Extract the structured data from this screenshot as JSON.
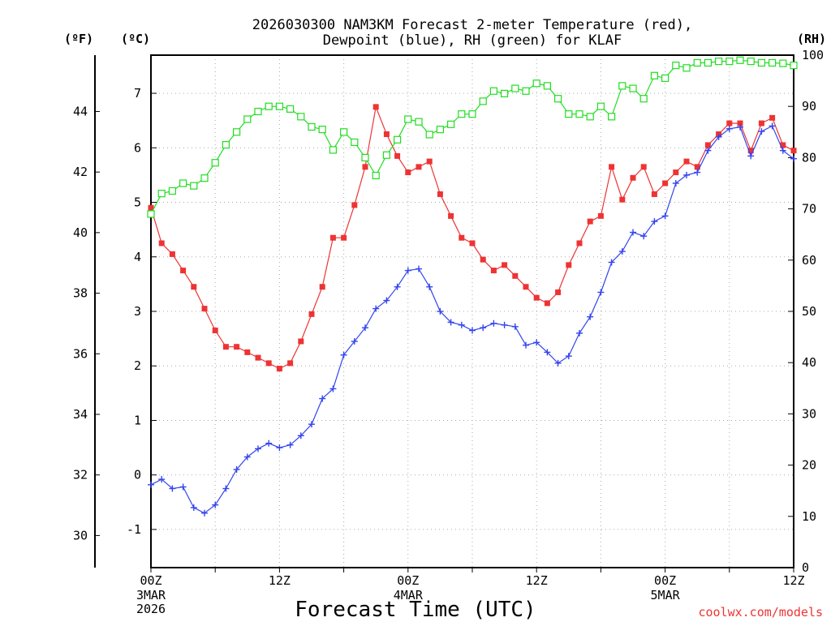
{
  "chart_data": {
    "type": "line",
    "title": "2026030300 NAM3KM Forecast 2-meter Temperature (red),",
    "subtitle": "Dewpoint (blue), RH (green) for KLAF",
    "xlabel": "Forecast Time (UTC)",
    "credit": "coolwx.com/models",
    "units": {
      "fahrenheit": "(ºF)",
      "celsius": "(ºC)",
      "rh": "(RH)"
    },
    "x_range_hours": [
      0,
      60
    ],
    "ylim_celsius": [
      -1.7,
      7.7
    ],
    "ylim_rh": [
      0,
      100
    ],
    "x_ticks": [
      {
        "hour": 0,
        "label": "00Z",
        "date": "3MAR",
        "year": "2026"
      },
      {
        "hour": 12,
        "label": "12Z",
        "date": "",
        "year": ""
      },
      {
        "hour": 24,
        "label": "00Z",
        "date": "4MAR",
        "year": ""
      },
      {
        "hour": 36,
        "label": "12Z",
        "date": "",
        "year": ""
      },
      {
        "hour": 48,
        "label": "00Z",
        "date": "5MAR",
        "year": ""
      },
      {
        "hour": 60,
        "label": "12Z",
        "date": "",
        "year": ""
      }
    ],
    "celsius_ticks": [
      "-1",
      "0",
      "1",
      "2",
      "3",
      "4",
      "5",
      "6",
      "7"
    ],
    "fahrenheit_ticks": [
      "30",
      "32",
      "34",
      "36",
      "38",
      "40",
      "42",
      "44"
    ],
    "rh_ticks": [
      "0",
      "10",
      "20",
      "30",
      "40",
      "50",
      "60",
      "70",
      "80",
      "90",
      "100"
    ],
    "series": [
      {
        "name": "2-meter Temperature",
        "color": "#ee3333",
        "marker": "filled-square",
        "axis": "celsius",
        "values": [
          4.9,
          4.25,
          4.05,
          3.75,
          3.45,
          3.05,
          2.65,
          2.35,
          2.35,
          2.25,
          2.15,
          2.05,
          1.95,
          2.05,
          2.45,
          2.95,
          3.45,
          4.35,
          4.35,
          4.95,
          5.65,
          6.75,
          6.25,
          5.85,
          5.55,
          5.65,
          5.75,
          5.15,
          4.75,
          4.35,
          4.25,
          3.95,
          3.75,
          3.85,
          3.65,
          3.45,
          3.25,
          3.15,
          3.35,
          3.85,
          4.25,
          4.65,
          4.75,
          5.65,
          5.05,
          5.45,
          5.65,
          5.15,
          5.35,
          5.55,
          5.75,
          5.65,
          6.05,
          6.25,
          6.45,
          6.45,
          5.95,
          6.45,
          6.55,
          6.05,
          5.95
        ]
      },
      {
        "name": "Dewpoint",
        "color": "#3344ee",
        "marker": "plus",
        "axis": "celsius",
        "values": [
          -0.18,
          -0.08,
          -0.25,
          -0.22,
          -0.6,
          -0.7,
          -0.55,
          -0.25,
          0.1,
          0.33,
          0.48,
          0.58,
          0.5,
          0.55,
          0.72,
          0.93,
          1.4,
          1.58,
          2.2,
          2.45,
          2.7,
          3.05,
          3.2,
          3.45,
          3.75,
          3.78,
          3.45,
          3.0,
          2.8,
          2.75,
          2.65,
          2.7,
          2.78,
          2.75,
          2.72,
          2.38,
          2.43,
          2.25,
          2.05,
          2.18,
          2.6,
          2.9,
          3.35,
          3.9,
          4.1,
          4.45,
          4.38,
          4.65,
          4.75,
          5.35,
          5.5,
          5.55,
          5.95,
          6.2,
          6.35,
          6.38,
          5.85,
          6.3,
          6.4,
          5.95,
          5.8
        ]
      },
      {
        "name": "RH",
        "color": "#22dd22",
        "marker": "open-square",
        "axis": "rh",
        "values": [
          69,
          73,
          73.5,
          75,
          74.5,
          76,
          79,
          82.5,
          85,
          87.5,
          89,
          90,
          90,
          89.5,
          88,
          86,
          85.5,
          81.5,
          85,
          83,
          80,
          76.5,
          80.5,
          83.5,
          87.5,
          87,
          84.5,
          85.5,
          86.5,
          88.5,
          88.5,
          91,
          93,
          92.5,
          93.5,
          93,
          94.5,
          94,
          91.5,
          88.5,
          88.5,
          88,
          90,
          88,
          94,
          93.5,
          91.5,
          96,
          95.5,
          98,
          97.5,
          98.5,
          98.5,
          98.8,
          98.8,
          99,
          98.8,
          98.5,
          98.5,
          98.4,
          98
        ]
      }
    ]
  }
}
